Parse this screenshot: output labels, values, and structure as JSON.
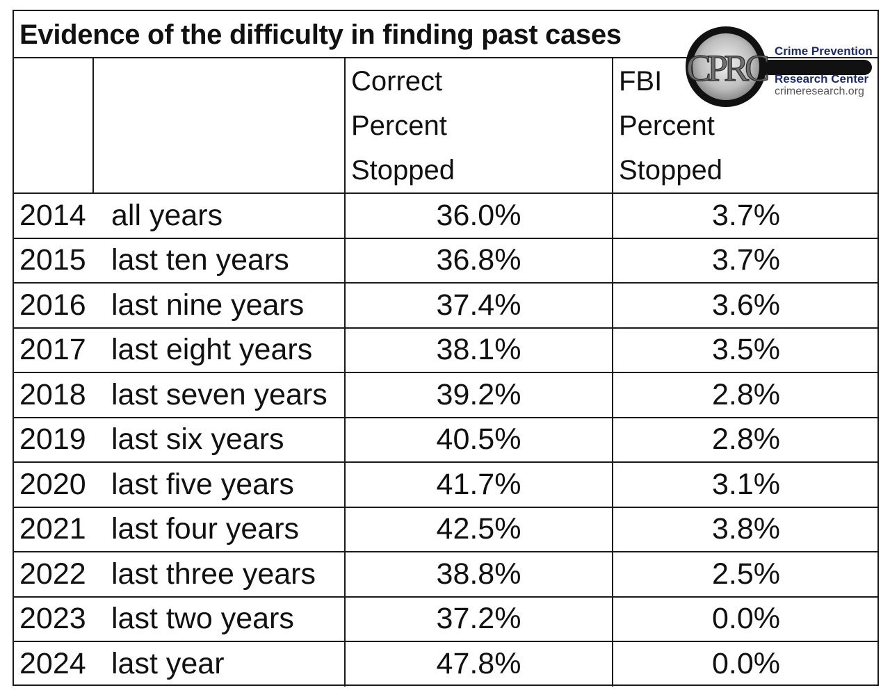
{
  "title": "Evidence of the difficulty in finding past cases",
  "logo": {
    "mark": "CPRC",
    "org_line1": "Crime Prevention",
    "org_line2": "Research Center",
    "website": "crimeresearch.org",
    "brand_color": "#1a2a6c",
    "icon": "magnifying-glass-icon"
  },
  "headers": {
    "year": "",
    "label": "",
    "correct": [
      "Correct",
      "Percent",
      "Stopped"
    ],
    "fbi": [
      "FBI",
      "Percent",
      "Stopped"
    ]
  },
  "rows": [
    {
      "year": "2014",
      "label": "all years",
      "correct": "36.0%",
      "fbi": "3.7%"
    },
    {
      "year": "2015",
      "label": "last ten years",
      "correct": "36.8%",
      "fbi": "3.7%"
    },
    {
      "year": "2016",
      "label": "last nine years",
      "correct": "37.4%",
      "fbi": "3.6%"
    },
    {
      "year": "2017",
      "label": "last eight years",
      "correct": "38.1%",
      "fbi": "3.5%"
    },
    {
      "year": "2018",
      "label": "last seven years",
      "correct": "39.2%",
      "fbi": "2.8%"
    },
    {
      "year": "2019",
      "label": "last six years",
      "correct": "40.5%",
      "fbi": "2.8%"
    },
    {
      "year": "2020",
      "label": "last five years",
      "correct": "41.7%",
      "fbi": "3.1%"
    },
    {
      "year": "2021",
      "label": "last four years",
      "correct": "42.5%",
      "fbi": "3.8%"
    },
    {
      "year": "2022",
      "label": "last three years",
      "correct": "38.8%",
      "fbi": "2.5%"
    },
    {
      "year": "2023",
      "label": "last two years",
      "correct": "37.2%",
      "fbi": "0.0%"
    },
    {
      "year": "2024",
      "label": "last year",
      "correct": "47.8%",
      "fbi": "0.0%"
    }
  ]
}
